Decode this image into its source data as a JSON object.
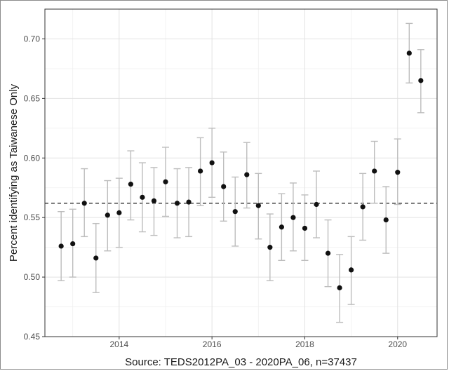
{
  "chart_data": {
    "type": "scatter",
    "title": "",
    "xlabel": "Source: TEDS2012PA_03 - 2020PA_06, n=37437",
    "ylabel": "Percent identifying as Taiwanese Only",
    "xlim": [
      2012.4,
      2020.85
    ],
    "ylim": [
      0.45,
      0.725
    ],
    "x_ticks": [
      2014,
      2016,
      2018,
      2020
    ],
    "x_tick_labels": [
      "2014",
      "2016",
      "2018",
      "2020"
    ],
    "y_ticks": [
      0.45,
      0.5,
      0.55,
      0.6,
      0.65,
      0.7
    ],
    "y_tick_labels": [
      "0.45",
      "0.50",
      "0.55",
      "0.60",
      "0.65",
      "0.70"
    ],
    "grid": true,
    "reference_line": {
      "y": 0.562,
      "style": "dashed"
    },
    "points": [
      {
        "x": 2012.75,
        "y": 0.526,
        "lo": 0.497,
        "hi": 0.555
      },
      {
        "x": 2013.0,
        "y": 0.528,
        "lo": 0.5,
        "hi": 0.557
      },
      {
        "x": 2013.25,
        "y": 0.562,
        "lo": 0.534,
        "hi": 0.591
      },
      {
        "x": 2013.5,
        "y": 0.516,
        "lo": 0.487,
        "hi": 0.545
      },
      {
        "x": 2013.75,
        "y": 0.552,
        "lo": 0.522,
        "hi": 0.581
      },
      {
        "x": 2014.0,
        "y": 0.554,
        "lo": 0.525,
        "hi": 0.583
      },
      {
        "x": 2014.25,
        "y": 0.578,
        "lo": 0.548,
        "hi": 0.606
      },
      {
        "x": 2014.5,
        "y": 0.567,
        "lo": 0.538,
        "hi": 0.596
      },
      {
        "x": 2014.75,
        "y": 0.564,
        "lo": 0.535,
        "hi": 0.592
      },
      {
        "x": 2015.0,
        "y": 0.58,
        "lo": 0.551,
        "hi": 0.609
      },
      {
        "x": 2015.25,
        "y": 0.562,
        "lo": 0.533,
        "hi": 0.591
      },
      {
        "x": 2015.5,
        "y": 0.563,
        "lo": 0.534,
        "hi": 0.592
      },
      {
        "x": 2015.75,
        "y": 0.589,
        "lo": 0.56,
        "hi": 0.617
      },
      {
        "x": 2016.0,
        "y": 0.596,
        "lo": 0.567,
        "hi": 0.625
      },
      {
        "x": 2016.25,
        "y": 0.576,
        "lo": 0.547,
        "hi": 0.605
      },
      {
        "x": 2016.5,
        "y": 0.555,
        "lo": 0.526,
        "hi": 0.584
      },
      {
        "x": 2016.75,
        "y": 0.586,
        "lo": 0.558,
        "hi": 0.613
      },
      {
        "x": 2017.0,
        "y": 0.56,
        "lo": 0.532,
        "hi": 0.587
      },
      {
        "x": 2017.25,
        "y": 0.525,
        "lo": 0.497,
        "hi": 0.553
      },
      {
        "x": 2017.5,
        "y": 0.542,
        "lo": 0.514,
        "hi": 0.57
      },
      {
        "x": 2017.75,
        "y": 0.55,
        "lo": 0.522,
        "hi": 0.579
      },
      {
        "x": 2018.0,
        "y": 0.541,
        "lo": 0.514,
        "hi": 0.569
      },
      {
        "x": 2018.25,
        "y": 0.561,
        "lo": 0.533,
        "hi": 0.589
      },
      {
        "x": 2018.5,
        "y": 0.52,
        "lo": 0.492,
        "hi": 0.548
      },
      {
        "x": 2018.75,
        "y": 0.491,
        "lo": 0.462,
        "hi": 0.519
      },
      {
        "x": 2019.0,
        "y": 0.506,
        "lo": 0.477,
        "hi": 0.534
      },
      {
        "x": 2019.25,
        "y": 0.559,
        "lo": 0.531,
        "hi": 0.587
      },
      {
        "x": 2019.5,
        "y": 0.589,
        "lo": 0.562,
        "hi": 0.614
      },
      {
        "x": 2019.75,
        "y": 0.548,
        "lo": 0.52,
        "hi": 0.576
      },
      {
        "x": 2020.0,
        "y": 0.588,
        "lo": 0.561,
        "hi": 0.616
      },
      {
        "x": 2020.25,
        "y": 0.688,
        "lo": 0.663,
        "hi": 0.713
      },
      {
        "x": 2020.5,
        "y": 0.665,
        "lo": 0.638,
        "hi": 0.691
      }
    ]
  }
}
